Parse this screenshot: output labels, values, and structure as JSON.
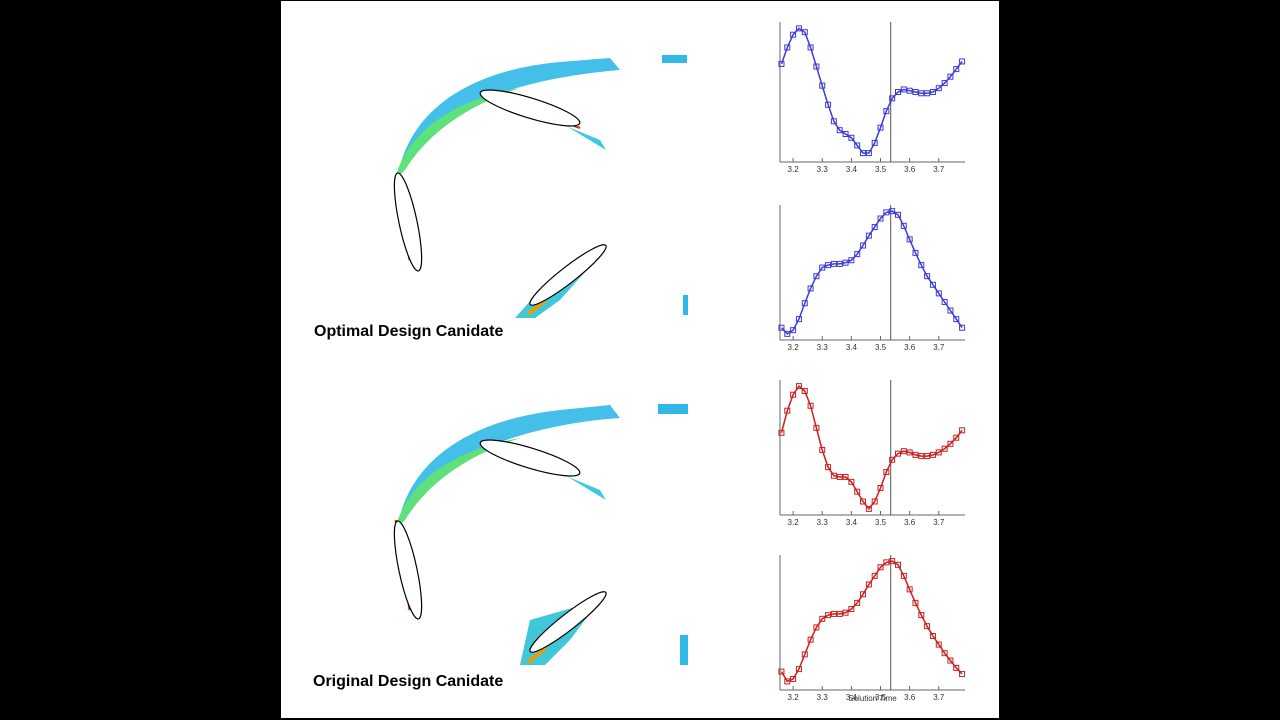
{
  "captions": [
    "Optimal Design Canidate",
    "Original Design Canidate"
  ],
  "chart_data": [
    {
      "type": "line",
      "color": "#3b3bd6",
      "x": [
        3.16,
        3.18,
        3.2,
        3.22,
        3.24,
        3.26,
        3.28,
        3.3,
        3.32,
        3.34,
        3.36,
        3.38,
        3.4,
        3.42,
        3.44,
        3.46,
        3.48,
        3.5,
        3.52,
        3.54,
        3.56,
        3.58,
        3.6,
        3.62,
        3.64,
        3.66,
        3.68,
        3.7,
        3.72,
        3.74,
        3.76,
        3.78
      ],
      "values": [
        0.72,
        0.85,
        0.95,
        1.0,
        0.97,
        0.85,
        0.7,
        0.55,
        0.4,
        0.27,
        0.2,
        0.17,
        0.14,
        0.08,
        0.02,
        0.02,
        0.1,
        0.22,
        0.35,
        0.45,
        0.5,
        0.52,
        0.51,
        0.5,
        0.49,
        0.49,
        0.5,
        0.53,
        0.57,
        0.62,
        0.68,
        0.74
      ],
      "xlim": [
        3.155,
        3.79
      ],
      "ylim": [
        -0.05,
        1.05
      ],
      "xticks": [
        3.2,
        3.3,
        3.4,
        3.5,
        3.6,
        3.7
      ],
      "marker_x": 3.535
    },
    {
      "type": "line",
      "color": "#3b3bd6",
      "x": [
        3.16,
        3.18,
        3.2,
        3.22,
        3.24,
        3.26,
        3.28,
        3.3,
        3.32,
        3.34,
        3.36,
        3.38,
        3.4,
        3.42,
        3.44,
        3.46,
        3.48,
        3.5,
        3.52,
        3.54,
        3.56,
        3.58,
        3.6,
        3.62,
        3.64,
        3.66,
        3.68,
        3.7,
        3.72,
        3.74,
        3.76,
        3.78
      ],
      "values": [
        0.05,
        0.0,
        0.03,
        0.12,
        0.25,
        0.37,
        0.47,
        0.54,
        0.56,
        0.57,
        0.57,
        0.58,
        0.6,
        0.65,
        0.72,
        0.8,
        0.87,
        0.94,
        0.99,
        1.0,
        0.97,
        0.88,
        0.77,
        0.66,
        0.56,
        0.47,
        0.4,
        0.33,
        0.26,
        0.19,
        0.12,
        0.05
      ],
      "xlim": [
        3.155,
        3.79
      ],
      "ylim": [
        -0.05,
        1.05
      ],
      "xticks": [
        3.2,
        3.3,
        3.4,
        3.5,
        3.6,
        3.7
      ],
      "marker_x": 3.535
    },
    {
      "type": "line",
      "color": "#c82020",
      "x": [
        3.16,
        3.18,
        3.2,
        3.22,
        3.24,
        3.26,
        3.28,
        3.3,
        3.32,
        3.34,
        3.36,
        3.38,
        3.4,
        3.42,
        3.44,
        3.46,
        3.48,
        3.5,
        3.52,
        3.54,
        3.56,
        3.58,
        3.6,
        3.62,
        3.64,
        3.66,
        3.68,
        3.7,
        3.72,
        3.74,
        3.76,
        3.78
      ],
      "values": [
        0.62,
        0.8,
        0.93,
        1.0,
        0.96,
        0.84,
        0.66,
        0.48,
        0.34,
        0.27,
        0.26,
        0.26,
        0.22,
        0.14,
        0.06,
        0.0,
        0.06,
        0.17,
        0.3,
        0.4,
        0.45,
        0.47,
        0.46,
        0.44,
        0.43,
        0.43,
        0.44,
        0.46,
        0.49,
        0.53,
        0.58,
        0.64
      ],
      "xlim": [
        3.155,
        3.79
      ],
      "ylim": [
        -0.05,
        1.05
      ],
      "xticks": [
        3.2,
        3.3,
        3.4,
        3.5,
        3.6,
        3.7
      ],
      "marker_x": 3.535
    },
    {
      "type": "line",
      "color": "#c82020",
      "x_label": "Solution Time",
      "x": [
        3.16,
        3.18,
        3.2,
        3.22,
        3.24,
        3.26,
        3.28,
        3.3,
        3.32,
        3.34,
        3.36,
        3.38,
        3.4,
        3.42,
        3.44,
        3.46,
        3.48,
        3.5,
        3.52,
        3.54,
        3.56,
        3.58,
        3.6,
        3.62,
        3.64,
        3.66,
        3.68,
        3.7,
        3.72,
        3.74,
        3.76,
        3.78
      ],
      "values": [
        0.1,
        0.02,
        0.04,
        0.12,
        0.24,
        0.36,
        0.46,
        0.53,
        0.56,
        0.57,
        0.57,
        0.58,
        0.61,
        0.66,
        0.73,
        0.81,
        0.88,
        0.95,
        0.99,
        1.0,
        0.97,
        0.88,
        0.77,
        0.66,
        0.56,
        0.47,
        0.39,
        0.32,
        0.25,
        0.19,
        0.13,
        0.08
      ],
      "xlim": [
        3.155,
        3.79
      ],
      "ylim": [
        -0.05,
        1.05
      ],
      "xticks": [
        3.2,
        3.3,
        3.4,
        3.5,
        3.6,
        3.7
      ],
      "marker_x": 3.535
    }
  ]
}
